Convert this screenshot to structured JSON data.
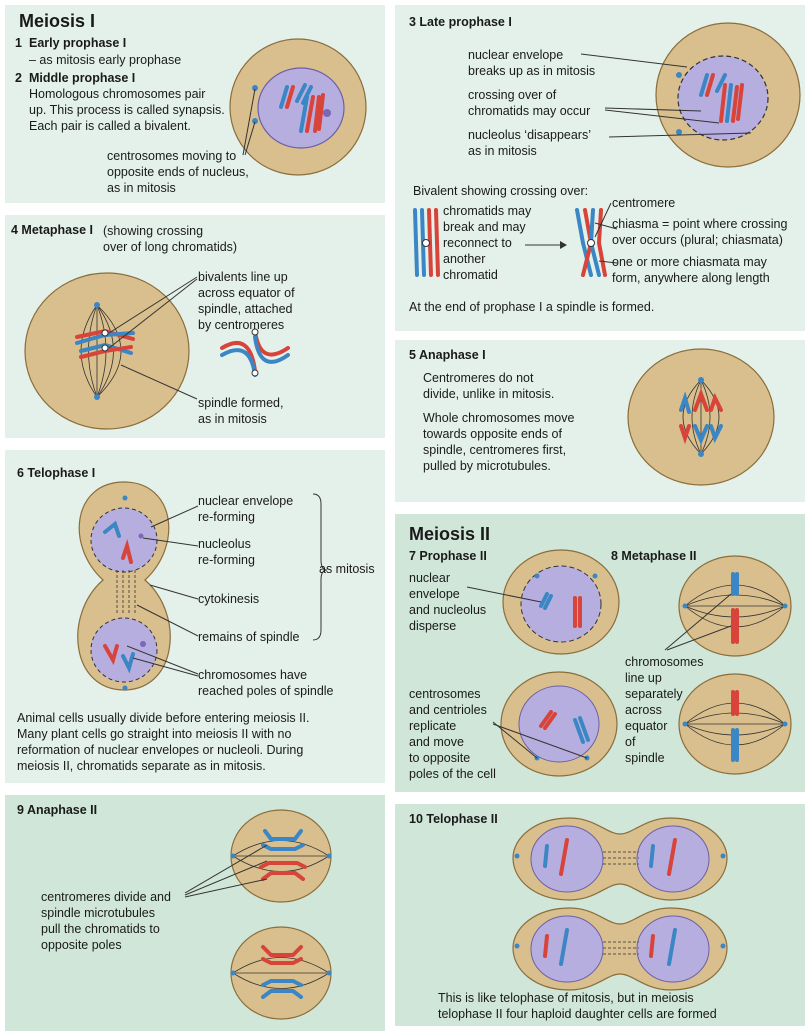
{
  "meiosis1": {
    "title": "Meiosis I",
    "early_num": "1",
    "early_label": "Early prophase I",
    "early_text": "– as mitosis early prophase",
    "mid_num": "2",
    "mid_label": "Middle prophase I",
    "mid_text": "Homologous chromosomes pair\nup. This process is called synapsis.\nEach pair is called a bivalent.",
    "centrosomes_text": "centrosomes moving to\nopposite ends of nucleus,\nas in mitosis"
  },
  "late_prophase": {
    "title": "3  Late prophase I",
    "nuclear_envelope": "nuclear envelope\nbreaks up as in mitosis",
    "crossing_over": "crossing over of\nchromatids may occur",
    "nucleolus": "nucleolus ‘disappears’\nas in mitosis",
    "bivalent_heading": "Bivalent showing crossing over:",
    "chromatids_break": "chromatids may\nbreak and may\nreconnect to\nanother\nchromatid",
    "centromere": "centromere",
    "chiasma": "chiasma = point where crossing\nover occurs (plural; chiasmata)",
    "one_or_more": "one or more chiasmata may\nform, anywhere along length",
    "spindle_formed": "At the end of prophase I a spindle is formed."
  },
  "metaphase1": {
    "title_bold": "4  Metaphase I",
    "title_rest": " (showing crossing\nover of long chromatids)",
    "bivalents": "bivalents line up\nacross equator of\nspindle, attached\nby centromeres",
    "spindle": "spindle formed,\nas in mitosis"
  },
  "anaphase1": {
    "title": "5  Anaphase I",
    "text1": "Centromeres do not\ndivide, unlike in mitosis.",
    "text2": "Whole chromosomes move\ntowards opposite ends of\nspindle, centromeres first,\npulled by microtubules."
  },
  "telophase1": {
    "title": "6  Telophase I",
    "nuclear_envelope": "nuclear envelope\nre-forming",
    "nucleolus": "nucleolus\nre-forming",
    "as_mitosis": "as mitosis",
    "cytokinesis": "cytokinesis",
    "remains": "remains of spindle",
    "chromosomes": "chromosomes have\nreached poles of spindle",
    "paragraph": "Animal cells usually divide before entering meiosis II.\nMany plant cells go straight into meiosis II with no\nreformation of nuclear envelopes or nucleoli. During\nmeiosis II, chromatids separate as in mitosis."
  },
  "meiosis2": {
    "title": "Meiosis II",
    "prophase_title": "7  Prophase II",
    "metaphase_title": "8  Metaphase II",
    "nuclear_text": "nuclear\nenvelope\nand nucleolus\ndisperse",
    "centrosomes_text": "centrosomes\nand centrioles\nreplicate\nand move\nto opposite\npoles of the cell",
    "chromosomes_text": "chromosomes\nline up\nseparately\nacross\nequator\nof\nspindle"
  },
  "anaphase2": {
    "title": "9  Anaphase II",
    "text": "centromeres divide and\nspindle microtubules\npull the chromatids to\nopposite poles"
  },
  "telophase2": {
    "title": "10  Telophase II",
    "text": "This is like telophase of mitosis, but in meiosis\ntelophase II four haploid daughter cells are formed"
  },
  "colors": {
    "panel_light": "#e4f1ea",
    "panel_dark": "#cfe6d8",
    "cytoplasm": "#d9bf8d",
    "nucleus": "#b7aee0",
    "chromosome_red": "#d8433a",
    "chromosome_blue": "#3b86c4"
  }
}
